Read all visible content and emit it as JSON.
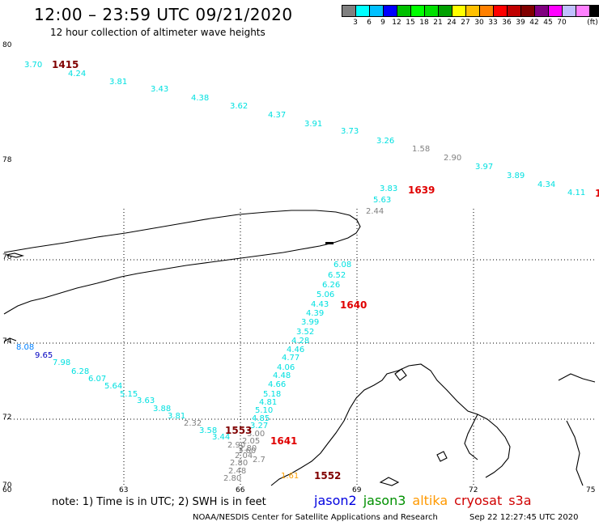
{
  "header": {
    "title": "12:00 – 23:59 UTC 09/21/2020",
    "subtitle": "12 hour collection of altimeter wave heights"
  },
  "colorbar": {
    "colors": [
      "#808080",
      "#00ffff",
      "#00c0ff",
      "#0000ff",
      "#00c000",
      "#00ff00",
      "#00e000",
      "#00a000",
      "#ffff00",
      "#ffc000",
      "#ff8000",
      "#ff0000",
      "#c00000",
      "#800000",
      "#800080",
      "#ff00ff",
      "#c0c0ff",
      "#ff80ff",
      "#000000"
    ],
    "labels": [
      "3",
      "6",
      "9",
      "12",
      "15",
      "18",
      "21",
      "24",
      "27",
      "30",
      "33",
      "36",
      "39",
      "42",
      "45",
      "70",
      "(ft)"
    ]
  },
  "axes": {
    "lat_labels": [
      "80",
      "78",
      "76",
      "74",
      "72",
      "70"
    ],
    "lon_labels": [
      "60",
      "63",
      "66",
      "69",
      "72",
      "75"
    ]
  },
  "tracks": {
    "colors": {
      "cyan": "#00e0e0",
      "gray": "#808080",
      "navy": "#0000c0",
      "blue": "#0080ff",
      "darkred": "#800000",
      "red": "#e00000",
      "orange": "#ffa000"
    },
    "time_labels": [
      {
        "text": "1415",
        "color": "#800000"
      },
      {
        "text": "1639",
        "color": "#e00000"
      },
      {
        "text": "1640",
        "color": "#e00000"
      },
      {
        "text": "1553",
        "color": "#800000"
      },
      {
        "text": "1641",
        "color": "#e00000"
      },
      {
        "text": "1552",
        "color": "#800000"
      },
      {
        "text": "1",
        "color": "#e00000"
      }
    ],
    "values": [
      {
        "t": "3.70",
        "c": "cyan"
      },
      {
        "t": "4.24",
        "c": "cyan"
      },
      {
        "t": "3.81",
        "c": "cyan"
      },
      {
        "t": "3.43",
        "c": "cyan"
      },
      {
        "t": "4.38",
        "c": "cyan"
      },
      {
        "t": "3.62",
        "c": "cyan"
      },
      {
        "t": "4.37",
        "c": "cyan"
      },
      {
        "t": "3.91",
        "c": "cyan"
      },
      {
        "t": "3.73",
        "c": "cyan"
      },
      {
        "t": "3.26",
        "c": "cyan"
      },
      {
        "t": "1.58",
        "c": "gray"
      },
      {
        "t": "2.90",
        "c": "gray"
      },
      {
        "t": "3.97",
        "c": "cyan"
      },
      {
        "t": "3.89",
        "c": "cyan"
      },
      {
        "t": "4.34",
        "c": "cyan"
      },
      {
        "t": "4.11",
        "c": "cyan"
      },
      {
        "t": "3.83",
        "c": "cyan"
      },
      {
        "t": "5.63",
        "c": "cyan"
      },
      {
        "t": "2.44",
        "c": "gray"
      },
      {
        "t": "6.08",
        "c": "cyan"
      },
      {
        "t": "6.52",
        "c": "cyan"
      },
      {
        "t": "6.26",
        "c": "cyan"
      },
      {
        "t": "5.06",
        "c": "cyan"
      },
      {
        "t": "4.43",
        "c": "cyan"
      },
      {
        "t": "4.39",
        "c": "cyan"
      },
      {
        "t": "3.99",
        "c": "cyan"
      },
      {
        "t": "3.52",
        "c": "cyan"
      },
      {
        "t": "4.28",
        "c": "cyan"
      },
      {
        "t": "4.46",
        "c": "cyan"
      },
      {
        "t": "4.77",
        "c": "cyan"
      },
      {
        "t": "4.06",
        "c": "cyan"
      },
      {
        "t": "4.48",
        "c": "cyan"
      },
      {
        "t": "4.66",
        "c": "cyan"
      },
      {
        "t": "5.18",
        "c": "cyan"
      },
      {
        "t": "4.81",
        "c": "cyan"
      },
      {
        "t": "5.10",
        "c": "cyan"
      },
      {
        "t": "4.85",
        "c": "cyan"
      },
      {
        "t": "3.27",
        "c": "cyan"
      },
      {
        "t": "3.00",
        "c": "gray"
      },
      {
        "t": "2.05",
        "c": "gray"
      },
      {
        "t": "2.80",
        "c": "gray"
      },
      {
        "t": "2.04",
        "c": "gray"
      },
      {
        "t": "2.7",
        "c": "gray"
      },
      {
        "t": "2.80",
        "c": "gray"
      },
      {
        "t": "2.48",
        "c": "gray"
      },
      {
        "t": "2.80",
        "c": "gray"
      },
      {
        "t": "8.08",
        "c": "blue"
      },
      {
        "t": "9.65",
        "c": "navy"
      },
      {
        "t": "7.98",
        "c": "cyan"
      },
      {
        "t": "6.28",
        "c": "cyan"
      },
      {
        "t": "6.07",
        "c": "cyan"
      },
      {
        "t": "5.64",
        "c": "cyan"
      },
      {
        "t": "5.15",
        "c": "cyan"
      },
      {
        "t": "3.63",
        "c": "cyan"
      },
      {
        "t": "3.88",
        "c": "cyan"
      },
      {
        "t": "3.81",
        "c": "cyan"
      },
      {
        "t": "2.32",
        "c": "gray"
      },
      {
        "t": "3.58",
        "c": "cyan"
      },
      {
        "t": "3.44",
        "c": "cyan"
      },
      {
        "t": "2.90",
        "c": "gray"
      },
      {
        "t": "3.60",
        "c": "gray"
      },
      {
        "t": "1.61",
        "c": "orange"
      }
    ]
  },
  "footer": {
    "note": "note:  1) Time is in UTC; 2) SWH is in feet",
    "legend": [
      {
        "name": "jason2",
        "color": "#0000e0"
      },
      {
        "name": "jason3",
        "color": "#009000"
      },
      {
        "name": "altika",
        "color": "#ff9900"
      },
      {
        "name": "cryosat",
        "color": "#d00000"
      },
      {
        "name": "s3a",
        "color": "#d00000"
      }
    ],
    "credit": "NOAA/NESDIS Center for Satellite Applications and Research",
    "timestamp": "Sep 22 12:27:45 UTC 2020"
  }
}
